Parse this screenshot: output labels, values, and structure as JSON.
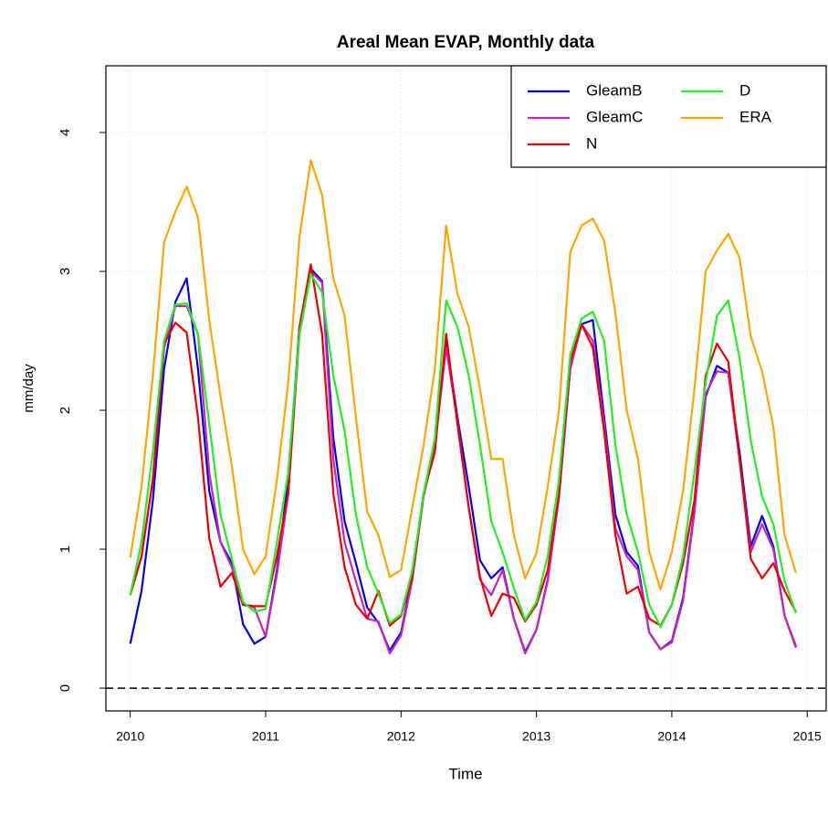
{
  "chart_data": {
    "type": "line",
    "title": "Areal Mean EVAP, Monthly data",
    "x_label": "Time",
    "y_label": "mm/day",
    "x": [
      2010,
      2010.0833,
      2010.1667,
      2010.25,
      2010.3333,
      2010.4167,
      2010.5,
      2010.5833,
      2010.6667,
      2010.75,
      2010.8333,
      2010.9167,
      2011,
      2011.0833,
      2011.1667,
      2011.25,
      2011.3333,
      2011.4167,
      2011.5,
      2011.5833,
      2011.6667,
      2011.75,
      2011.8333,
      2011.9167,
      2012,
      2012.0833,
      2012.1667,
      2012.25,
      2012.3333,
      2012.4167,
      2012.5,
      2012.5833,
      2012.6667,
      2012.75,
      2012.8333,
      2012.9167,
      2013,
      2013.0833,
      2013.1667,
      2013.25,
      2013.3333,
      2013.4167,
      2013.5,
      2013.5833,
      2013.6667,
      2013.75,
      2013.8333,
      2013.9167,
      2014,
      2014.0833,
      2014.1667,
      2014.25,
      2014.3333,
      2014.4167,
      2014.5,
      2014.5833,
      2014.6667,
      2014.75,
      2014.8333,
      2014.9167
    ],
    "series": [
      {
        "name": "GleamB",
        "color": "#0000ee",
        "values": [
          0.32,
          0.7,
          1.35,
          2.3,
          2.78,
          2.95,
          2.3,
          1.42,
          1.05,
          0.9,
          0.46,
          0.32,
          0.37,
          0.85,
          1.5,
          2.6,
          3.02,
          2.93,
          1.8,
          1.2,
          0.9,
          0.58,
          0.47,
          0.27,
          0.4,
          0.8,
          1.4,
          1.75,
          2.5,
          1.95,
          1.45,
          0.92,
          0.79,
          0.87,
          0.5,
          0.26,
          0.42,
          0.78,
          1.38,
          2.3,
          2.62,
          2.65,
          1.95,
          1.25,
          0.98,
          0.88,
          0.4,
          0.28,
          0.34,
          0.65,
          1.28,
          2.1,
          2.32,
          2.27,
          1.7,
          1.02,
          1.24,
          1.02,
          0.52,
          0.3
        ]
      },
      {
        "name": "GleamC",
        "color": "#cc22bb",
        "values": [
          0.67,
          0.95,
          1.5,
          2.45,
          2.75,
          2.75,
          2.55,
          1.55,
          1.05,
          0.87,
          0.6,
          0.58,
          0.37,
          0.82,
          1.4,
          2.55,
          3.0,
          2.92,
          1.65,
          1.05,
          0.77,
          0.5,
          0.48,
          0.25,
          0.38,
          0.78,
          1.38,
          1.75,
          2.45,
          1.92,
          1.3,
          0.78,
          0.67,
          0.85,
          0.5,
          0.25,
          0.42,
          0.77,
          1.38,
          2.3,
          2.62,
          2.5,
          1.9,
          1.15,
          0.95,
          0.85,
          0.4,
          0.28,
          0.33,
          0.63,
          1.26,
          2.12,
          2.28,
          2.27,
          1.65,
          0.98,
          1.18,
          1.0,
          0.52,
          0.29
        ]
      },
      {
        "name": "N",
        "color": "#ee0000",
        "values": [
          0.67,
          0.95,
          1.5,
          2.48,
          2.63,
          2.56,
          1.95,
          1.08,
          0.73,
          0.83,
          0.6,
          0.59,
          0.59,
          0.95,
          1.4,
          2.6,
          3.05,
          2.55,
          1.4,
          0.87,
          0.6,
          0.5,
          0.7,
          0.45,
          0.52,
          0.8,
          1.4,
          1.7,
          2.55,
          1.9,
          1.3,
          0.8,
          0.52,
          0.68,
          0.65,
          0.48,
          0.6,
          0.85,
          1.4,
          2.35,
          2.62,
          2.45,
          1.85,
          1.1,
          0.68,
          0.73,
          0.5,
          0.45,
          0.6,
          0.9,
          1.35,
          2.25,
          2.48,
          2.35,
          1.65,
          0.93,
          0.79,
          0.9,
          0.7,
          0.55
        ]
      },
      {
        "name": "D",
        "color": "#22ee22",
        "values": [
          0.67,
          1.05,
          1.7,
          2.5,
          2.76,
          2.77,
          2.55,
          1.9,
          1.25,
          0.93,
          0.62,
          0.55,
          0.57,
          1.05,
          1.55,
          2.55,
          2.98,
          2.85,
          2.25,
          1.85,
          1.25,
          0.87,
          0.68,
          0.47,
          0.53,
          0.85,
          1.4,
          1.8,
          2.79,
          2.6,
          2.25,
          1.75,
          1.2,
          0.98,
          0.72,
          0.49,
          0.62,
          0.95,
          1.5,
          2.4,
          2.66,
          2.71,
          2.5,
          1.75,
          1.25,
          0.98,
          0.6,
          0.44,
          0.6,
          0.95,
          1.55,
          2.2,
          2.68,
          2.79,
          2.38,
          1.78,
          1.38,
          1.18,
          0.77,
          0.54
        ]
      },
      {
        "name": "ERA",
        "color": "#ffa500",
        "values": [
          0.94,
          1.45,
          2.25,
          3.21,
          3.43,
          3.61,
          3.39,
          2.65,
          2.1,
          1.6,
          1.0,
          0.82,
          0.95,
          1.5,
          2.2,
          3.25,
          3.8,
          3.55,
          2.95,
          2.68,
          1.95,
          1.27,
          1.1,
          0.8,
          0.85,
          1.3,
          1.75,
          2.3,
          3.33,
          2.84,
          2.6,
          2.15,
          1.65,
          1.65,
          1.1,
          0.79,
          0.97,
          1.45,
          2.0,
          3.14,
          3.33,
          3.38,
          3.22,
          2.7,
          2.0,
          1.65,
          0.98,
          0.71,
          0.98,
          1.42,
          2.15,
          3.0,
          3.15,
          3.27,
          3.1,
          2.53,
          2.28,
          1.88,
          1.1,
          0.83
        ]
      }
    ],
    "xlim": [
      2009.82,
      2015.14
    ],
    "xticks": [
      2010,
      2011,
      2012,
      2013,
      2014,
      2015
    ],
    "ylim": [
      -0.164,
      4.48
    ],
    "yticks": [
      0,
      1,
      2,
      3,
      4
    ],
    "hlines": [
      0
    ],
    "grid": true,
    "legend": "top-right",
    "legend_columns": 2
  }
}
